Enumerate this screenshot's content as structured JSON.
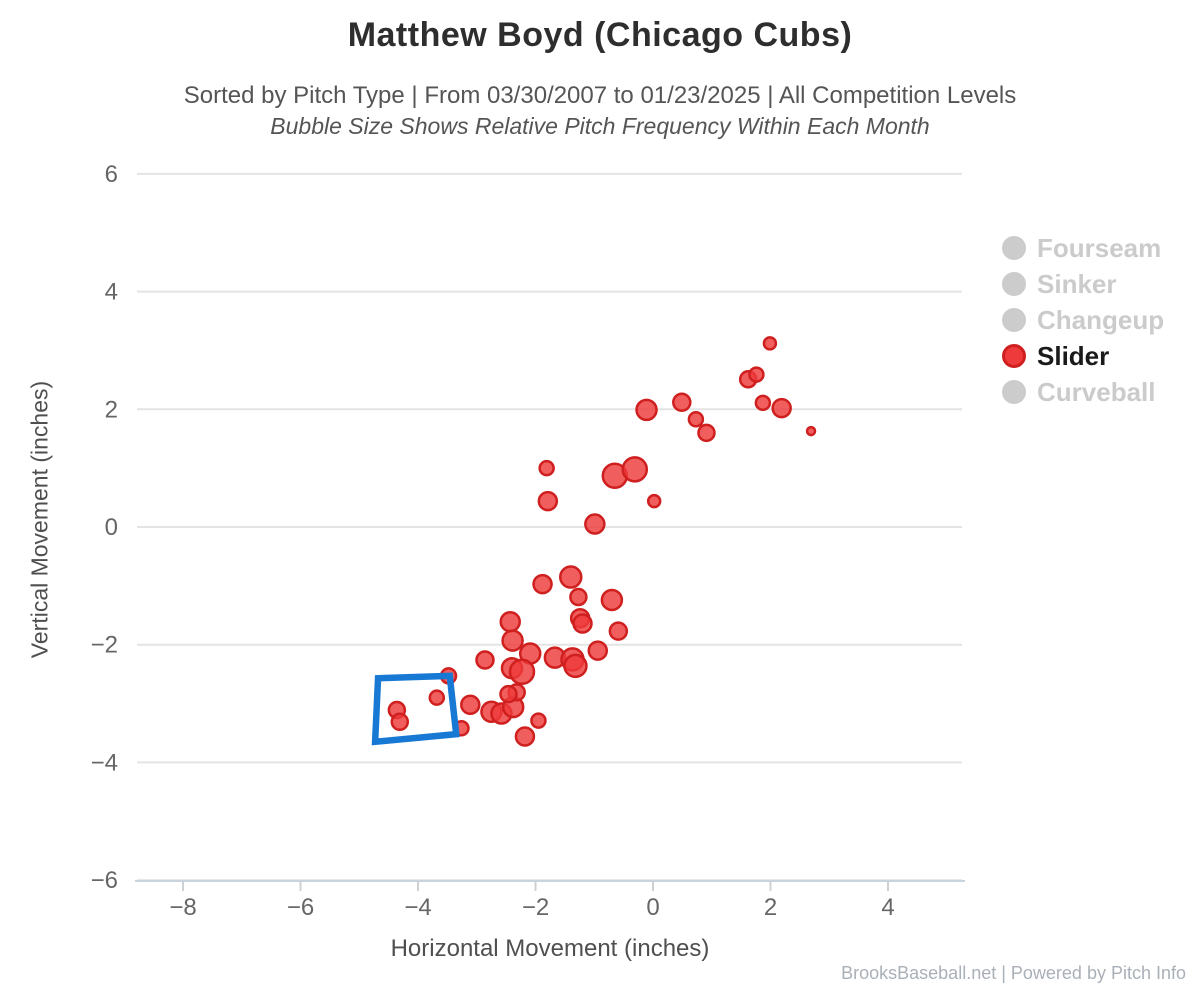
{
  "header": {
    "title": "Matthew Boyd (Chicago Cubs)",
    "subtitle": "Sorted by Pitch Type | From 03/30/2007 to 01/23/2025 | All Competition Levels",
    "subtitle2": "Bubble Size Shows Relative Pitch Frequency Within Each Month"
  },
  "legend": {
    "items": [
      {
        "label": "Fourseam",
        "color": "#cccccc",
        "border": "#cccccc",
        "text_color": "#cbcbcb",
        "active": false
      },
      {
        "label": "Sinker",
        "color": "#cccccc",
        "border": "#cccccc",
        "text_color": "#cbcbcb",
        "active": false
      },
      {
        "label": "Changeup",
        "color": "#cccccc",
        "border": "#cccccc",
        "text_color": "#cbcbcb",
        "active": false
      },
      {
        "label": "Slider",
        "color": "#ee3a3a",
        "border": "#cf1f1f",
        "text_color": "#1a1a1a",
        "active": true
      },
      {
        "label": "Curveball",
        "color": "#cccccc",
        "border": "#cccccc",
        "text_color": "#cbcbcb",
        "active": false
      }
    ]
  },
  "footer": {
    "credit": "BrooksBaseball.net | Powered by Pitch Info"
  },
  "chart_data": {
    "type": "scatter",
    "title": "Matthew Boyd (Chicago Cubs)",
    "xlabel": "Horizontal Movement (inches)",
    "ylabel": "Vertical Movement (inches)",
    "xlim": [
      -8.8,
      5.3
    ],
    "ylim": [
      -6.1,
      6.3
    ],
    "xticks": [
      -8,
      -6,
      -4,
      -2,
      0,
      2,
      4
    ],
    "yticks": [
      -6,
      -4,
      -2,
      0,
      2,
      4,
      6
    ],
    "grid": "horizontal",
    "legend_position": "right",
    "colors": {
      "bubble_fill": "#ee3a3a",
      "bubble_stroke": "#cf1f1f",
      "gridline": "#e4e4e4",
      "axis_line": "#c9d3de",
      "tick_label": "#666666",
      "annotation_box": "#1779d4"
    },
    "series": [
      {
        "name": "Slider",
        "points": [
          {
            "x": 1.99,
            "y": 3.12,
            "r": 6
          },
          {
            "x": 1.62,
            "y": 2.51,
            "r": 8
          },
          {
            "x": 1.76,
            "y": 2.59,
            "r": 7
          },
          {
            "x": 1.87,
            "y": 2.11,
            "r": 7
          },
          {
            "x": 2.19,
            "y": 2.02,
            "r": 9
          },
          {
            "x": 2.69,
            "y": 1.63,
            "r": 4
          },
          {
            "x": -0.11,
            "y": 1.99,
            "r": 10
          },
          {
            "x": 0.49,
            "y": 2.12,
            "r": 8.5
          },
          {
            "x": 0.73,
            "y": 1.83,
            "r": 7
          },
          {
            "x": 0.91,
            "y": 1.6,
            "r": 8
          },
          {
            "x": -0.65,
            "y": 0.87,
            "r": 12
          },
          {
            "x": -0.31,
            "y": 0.98,
            "r": 12
          },
          {
            "x": 0.02,
            "y": 0.44,
            "r": 6
          },
          {
            "x": -1.81,
            "y": 1.0,
            "r": 7
          },
          {
            "x": -1.79,
            "y": 0.44,
            "r": 9
          },
          {
            "x": -0.99,
            "y": 0.05,
            "r": 9.5
          },
          {
            "x": -1.88,
            "y": -0.97,
            "r": 9
          },
          {
            "x": -1.4,
            "y": -0.85,
            "r": 10.5
          },
          {
            "x": -1.27,
            "y": -1.19,
            "r": 8
          },
          {
            "x": -0.7,
            "y": -1.24,
            "r": 10
          },
          {
            "x": -1.24,
            "y": -1.55,
            "r": 9
          },
          {
            "x": -1.2,
            "y": -1.64,
            "r": 9
          },
          {
            "x": -0.59,
            "y": -1.77,
            "r": 8.5
          },
          {
            "x": -2.43,
            "y": -1.61,
            "r": 9.5
          },
          {
            "x": -2.39,
            "y": -1.93,
            "r": 10
          },
          {
            "x": -2.09,
            "y": -2.15,
            "r": 10
          },
          {
            "x": -2.86,
            "y": -2.26,
            "r": 8.5
          },
          {
            "x": -2.4,
            "y": -2.4,
            "r": 10
          },
          {
            "x": -2.23,
            "y": -2.46,
            "r": 12
          },
          {
            "x": -1.67,
            "y": -2.22,
            "r": 10
          },
          {
            "x": -1.37,
            "y": -2.25,
            "r": 11
          },
          {
            "x": -1.32,
            "y": -2.36,
            "r": 11
          },
          {
            "x": -0.94,
            "y": -2.1,
            "r": 9
          },
          {
            "x": -3.48,
            "y": -2.53,
            "r": 7.5
          },
          {
            "x": -3.68,
            "y": -2.9,
            "r": 7
          },
          {
            "x": -4.36,
            "y": -3.11,
            "r": 8
          },
          {
            "x": -4.31,
            "y": -3.31,
            "r": 8
          },
          {
            "x": -3.11,
            "y": -3.02,
            "r": 9
          },
          {
            "x": -3.26,
            "y": -3.42,
            "r": 7
          },
          {
            "x": -2.75,
            "y": -3.14,
            "r": 10
          },
          {
            "x": -2.58,
            "y": -3.17,
            "r": 10
          },
          {
            "x": -2.38,
            "y": -3.06,
            "r": 10
          },
          {
            "x": -2.32,
            "y": -2.81,
            "r": 8
          },
          {
            "x": -2.46,
            "y": -2.84,
            "r": 8
          },
          {
            "x": -1.95,
            "y": -3.29,
            "r": 7
          },
          {
            "x": -2.18,
            "y": -3.56,
            "r": 9
          }
        ]
      }
    ],
    "annotation_box": {
      "points": [
        [
          -4.68,
          -2.57
        ],
        [
          -3.46,
          -2.53
        ],
        [
          -3.35,
          -3.52
        ],
        [
          -4.73,
          -3.65
        ]
      ]
    }
  }
}
